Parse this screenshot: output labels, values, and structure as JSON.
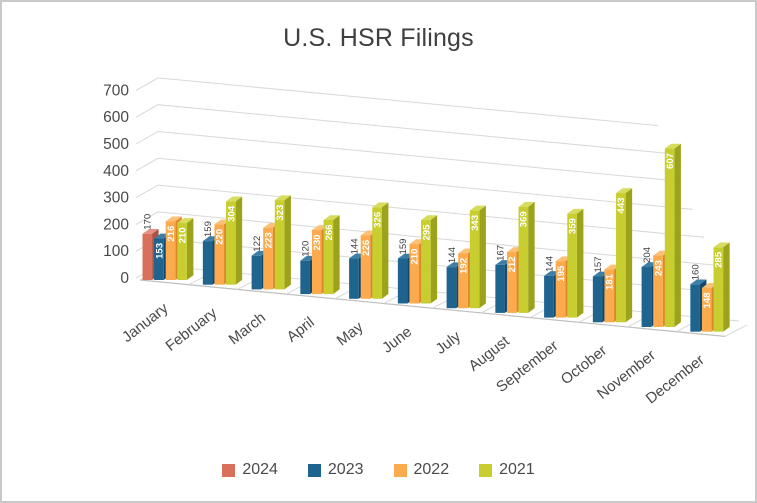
{
  "frame": {
    "border_color": "#c9c9c9",
    "background": "#ffffff"
  },
  "chart_data": {
    "type": "bar",
    "variant": "3d-clustered-column",
    "title": "U.S. HSR Filings",
    "title_color": "#404040",
    "categories": [
      "January",
      "February",
      "March",
      "April",
      "May",
      "June",
      "July",
      "August",
      "September",
      "October",
      "November",
      "December"
    ],
    "series": [
      {
        "name": "2024",
        "color": "#d9705b",
        "side_color": "#ad5243",
        "top_color": "#e39180",
        "values": [
          170,
          null,
          null,
          null,
          null,
          null,
          null,
          null,
          null,
          null,
          null,
          null
        ]
      },
      {
        "name": "2023",
        "color": "#1e648f",
        "side_color": "#12476b",
        "top_color": "#3d7fa6",
        "values": [
          153,
          159,
          122,
          120,
          144,
          159,
          144,
          167,
          144,
          157,
          204,
          160
        ]
      },
      {
        "name": "2022",
        "color": "#fbab4d",
        "side_color": "#dd8828",
        "top_color": "#fcc077",
        "values": [
          216,
          220,
          223,
          230,
          226,
          210,
          192,
          212,
          195,
          181,
          243,
          148
        ]
      },
      {
        "name": "2021",
        "color": "#c8ce30",
        "side_color": "#9ca31b",
        "top_color": "#d7dc5c",
        "values": [
          210,
          304,
          323,
          266,
          326,
          295,
          343,
          369,
          359,
          443,
          607,
          285
        ]
      }
    ],
    "ylim": [
      0,
      700
    ],
    "yticks": [
      0,
      100,
      200,
      300,
      400,
      500,
      600,
      700
    ],
    "grid": true,
    "gridline_color": "#d8d8d8",
    "axis_line_color": "#bfbfbf",
    "axis_label_color": "#4a4a4a",
    "value_label_outside_color": "#3f3f3f",
    "value_label_inside_color": "#ffffff",
    "value_label_rule": "first visible bar of each month labeled outside in dark gray; remaining bars labeled inside in white; labels rotated vertical",
    "legend_position": "bottom"
  }
}
